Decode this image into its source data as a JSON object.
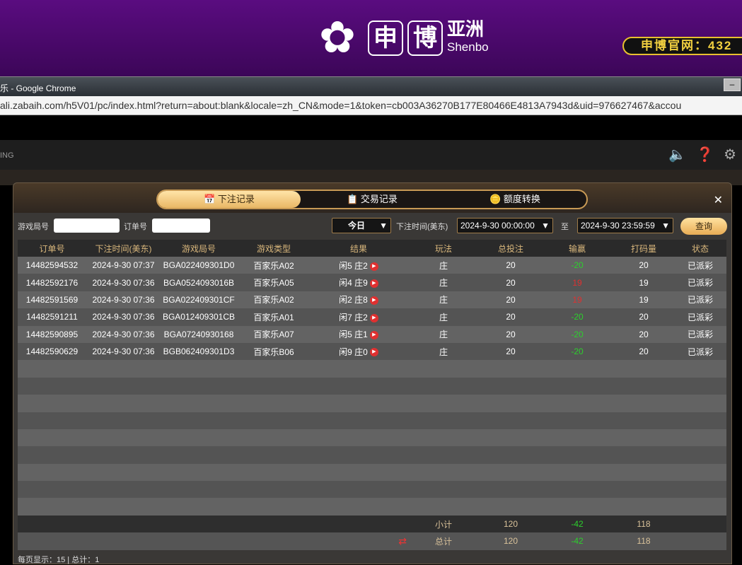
{
  "banner": {
    "logo_main": "申",
    "logo_second": "博",
    "logo_cn": "亚洲",
    "logo_en": "Shenbo",
    "site_label": "申博官网：432"
  },
  "browser": {
    "title": "乐 - Google Chrome",
    "url": "ali.zabaih.com/h5V01/pc/index.html?return=about:blank&locale=zh_CN&mode=1&token=cb003A36270B177E80466E4813A7943d&uid=976627467&accou"
  },
  "app": {
    "brand": "ING"
  },
  "modal": {
    "tabs": [
      {
        "label": "下注记录",
        "icon": "calendar-icon",
        "active": true
      },
      {
        "label": "交易记录",
        "icon": "clipboard-icon",
        "active": false
      },
      {
        "label": "额度转换",
        "icon": "coins-icon",
        "active": false
      }
    ],
    "filter": {
      "game_round_label": "游戏局号",
      "game_round_value": "",
      "order_label": "订单号",
      "order_value": "",
      "period": "今日",
      "time_label": "下注时间(美东)",
      "start": "2024-9-30 00:00:00",
      "to_label": "至",
      "end": "2024-9-30 23:59:59",
      "query": "查询"
    },
    "columns": [
      "订单号",
      "下注时间(美东)",
      "游戏局号",
      "游戏类型",
      "结果",
      "玩法",
      "总投注",
      "输赢",
      "打码量",
      "状态"
    ],
    "rows": [
      [
        "14482594532",
        "2024-9-30 07:37",
        "BGA022409301D0",
        "百家乐A02",
        "闲5 庄2",
        "庄",
        "20",
        "-20",
        "20",
        "已派彩"
      ],
      [
        "14482592176",
        "2024-9-30 07:36",
        "BGA0524093016B",
        "百家乐A05",
        "闲4 庄9",
        "庄",
        "20",
        "19",
        "19",
        "已派彩"
      ],
      [
        "14482591569",
        "2024-9-30 07:36",
        "BGA022409301CF",
        "百家乐A02",
        "闲2 庄8",
        "庄",
        "20",
        "19",
        "19",
        "已派彩"
      ],
      [
        "14482591211",
        "2024-9-30 07:36",
        "BGA012409301CB",
        "百家乐A01",
        "闲7 庄2",
        "庄",
        "20",
        "-20",
        "20",
        "已派彩"
      ],
      [
        "14482590895",
        "2024-9-30 07:36",
        "BGA07240930168",
        "百家乐A07",
        "闲5 庄1",
        "庄",
        "20",
        "-20",
        "20",
        "已派彩"
      ],
      [
        "14482590629",
        "2024-9-30 07:36",
        "BGB062409301D3",
        "百家乐B06",
        "闲9 庄0",
        "庄",
        "20",
        "-20",
        "20",
        "已派彩"
      ]
    ],
    "subtotal": {
      "label": "小计",
      "bet": "120",
      "win": "-42",
      "valid": "118"
    },
    "total": {
      "label": "总计",
      "bet": "120",
      "win": "-42",
      "valid": "118"
    },
    "footer": "每页显示：15 | 总计：1",
    "colors": {
      "win": "#2cd02c",
      "lose": "#e03030",
      "accent": "#e9b765"
    }
  }
}
